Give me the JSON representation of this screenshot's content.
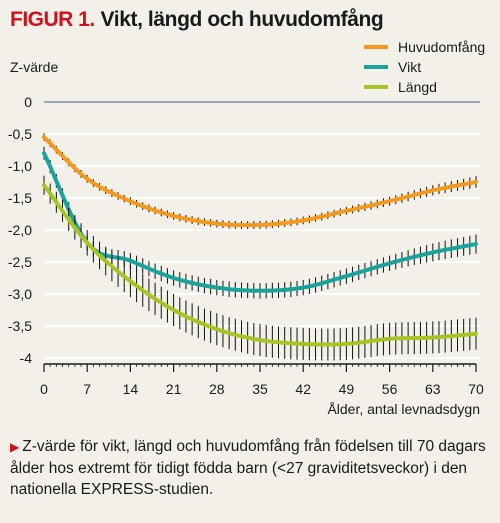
{
  "header": {
    "figure_label": "FIGUR 1.",
    "title": "Vikt, längd och huvudomfång"
  },
  "caption": {
    "marker": "triangle-right-icon",
    "text": "Z-värde för vikt, längd och huvudomfång från födelsen till 70 dagars ålder hos extremt för tidigt födda barn (<27 graviditetsveckor) i den nationella EXPRESS-studien."
  },
  "chart_data": {
    "type": "line",
    "ylabel": "Z-värde",
    "xlabel": "Ålder, antal levnadsdygn",
    "xlim": [
      0,
      70
    ],
    "ylim": [
      -4,
      0
    ],
    "x_ticks": [
      0,
      7,
      14,
      21,
      28,
      35,
      42,
      49,
      56,
      63,
      70
    ],
    "y_ticks": [
      0,
      -0.5,
      -1,
      -1.5,
      -2,
      -2.5,
      -3,
      -3.5,
      -4
    ],
    "y_tick_labels": [
      "0",
      "-0,5",
      "-1,0",
      "-1,5",
      "-2,0",
      "-2,5",
      "-3,0",
      "-3,5",
      "-4"
    ],
    "grid": "horizontal",
    "legend_position": "top-right",
    "error_bars": true,
    "series": [
      {
        "name": "Huvudomfång",
        "color": "#f39a1e",
        "x": [
          0,
          7,
          14,
          21,
          28,
          35,
          42,
          49,
          56,
          63,
          70
        ],
        "y": [
          -0.55,
          -1.2,
          -1.55,
          -1.78,
          -1.9,
          -1.92,
          -1.85,
          -1.7,
          -1.55,
          -1.38,
          -1.25
        ],
        "error": [
          0.06,
          0.06,
          0.06,
          0.06,
          0.06,
          0.06,
          0.06,
          0.06,
          0.07,
          0.08,
          0.09
        ]
      },
      {
        "name": "Vikt",
        "color": "#1aa39a",
        "x": [
          0,
          7,
          14,
          21,
          28,
          35,
          42,
          49,
          56,
          63,
          70
        ],
        "y": [
          -0.8,
          -2.2,
          -2.48,
          -2.75,
          -2.9,
          -2.95,
          -2.9,
          -2.72,
          -2.52,
          -2.35,
          -2.22
        ],
        "error": [
          0.1,
          0.12,
          0.12,
          0.12,
          0.12,
          0.12,
          0.12,
          0.12,
          0.12,
          0.14,
          0.15
        ]
      },
      {
        "name": "Längd",
        "color": "#a8c424",
        "x": [
          0,
          7,
          14,
          21,
          28,
          35,
          42,
          49,
          56,
          63,
          70
        ],
        "y": [
          -1.3,
          -2.2,
          -2.8,
          -3.25,
          -3.55,
          -3.72,
          -3.78,
          -3.78,
          -3.7,
          -3.68,
          -3.62
        ],
        "error": [
          0.15,
          0.2,
          0.25,
          0.25,
          0.25,
          0.25,
          0.25,
          0.25,
          0.25,
          0.25,
          0.25
        ]
      }
    ]
  }
}
